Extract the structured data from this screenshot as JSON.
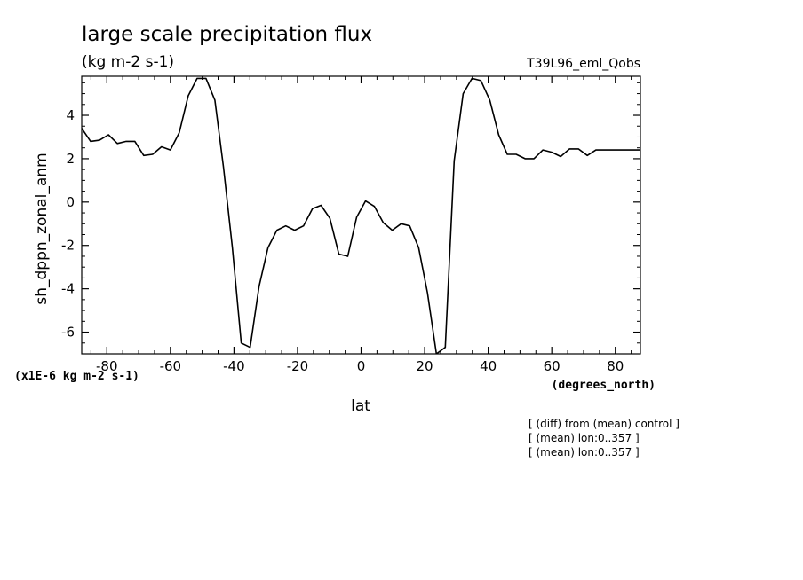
{
  "chart_data": {
    "type": "line",
    "title": "large scale precipitation flux",
    "subtitle": "(kg m-2 s-1)",
    "run_label": "T39L96_eml_Qobs",
    "ylabel": "sh_dppn_zonal_anm",
    "xlabel": "lat",
    "x_units": "(degrees_north)",
    "y_scale_note": "(x1E-6 kg m-2 s-1)",
    "xlim": [
      -87.9,
      87.9
    ],
    "ylim": [
      -7,
      5.8
    ],
    "x_ticks": [
      -80,
      -60,
      -40,
      -20,
      0,
      20,
      40,
      60,
      80
    ],
    "x_tick_labels": [
      "-80",
      "-60",
      "-40",
      "-20",
      "0",
      "20",
      "40",
      "60",
      "80"
    ],
    "y_ticks": [
      -6,
      -4,
      -2,
      0,
      2,
      4
    ],
    "y_tick_labels": [
      "-6",
      "-4",
      "-2",
      "0",
      "2",
      "4"
    ],
    "grid": false,
    "notes": [
      "[ (diff) from (mean) control ]",
      "[ (mean) lon:0..357 ]",
      "[ (mean) lon:0..357 ]"
    ],
    "series": [
      {
        "x": [
          -87.9,
          -85.1,
          -82.3,
          -79.5,
          -76.7,
          -73.9,
          -71.2,
          -68.4,
          -65.6,
          -62.8,
          -60.0,
          -57.2,
          -54.4,
          -51.6,
          -48.8,
          -46.0,
          -43.3,
          -40.5,
          -37.7,
          -34.9,
          -32.1,
          -29.3,
          -26.5,
          -23.7,
          -20.9,
          -18.1,
          -15.3,
          -12.6,
          -9.8,
          -7.0,
          -4.2,
          -1.4,
          1.4,
          4.2,
          7.0,
          9.8,
          12.6,
          15.3,
          18.1,
          20.9,
          23.7,
          26.5,
          29.3,
          32.1,
          34.9,
          37.7,
          40.5,
          43.3,
          46.0,
          48.8,
          51.6,
          54.4,
          57.2,
          60.0,
          62.8,
          65.6,
          68.4,
          71.2,
          73.9,
          76.7,
          79.5,
          82.3,
          85.1,
          87.9
        ],
        "y": [
          3.4,
          2.8,
          2.85,
          3.1,
          2.7,
          2.8,
          2.8,
          2.15,
          2.2,
          2.55,
          2.4,
          3.2,
          4.9,
          5.7,
          5.7,
          4.7,
          1.6,
          -2.1,
          -6.5,
          -6.7,
          -3.9,
          -2.1,
          -1.3,
          -1.1,
          -1.3,
          -1.1,
          -0.3,
          -0.15,
          -0.75,
          -2.4,
          -2.5,
          -0.7,
          0.05,
          -0.2,
          -0.95,
          -1.3,
          -1.0,
          -1.1,
          -2.1,
          -4.2,
          -7.0,
          -6.7,
          1.9,
          5.0,
          5.7,
          5.6,
          4.7,
          3.1,
          2.2,
          2.2,
          2.0,
          2.0,
          2.4,
          2.3,
          2.1,
          2.45,
          2.45,
          2.15,
          2.4,
          2.4,
          2.4,
          2.4,
          2.4,
          2.4
        ]
      }
    ]
  }
}
